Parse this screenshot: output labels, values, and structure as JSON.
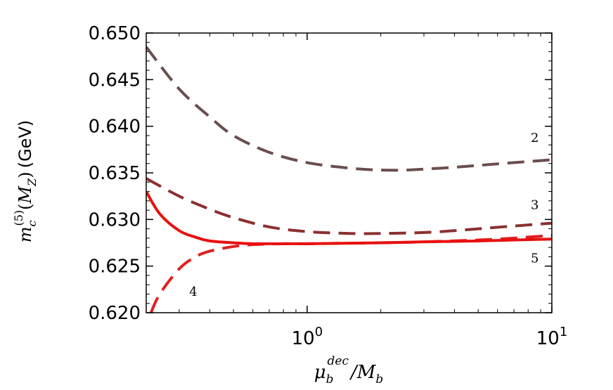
{
  "chart_data": {
    "type": "line",
    "title": "",
    "xlabel": "μ_b^dec / M_b",
    "ylabel": "m_c^(5)(M_Z) (GeV)",
    "ylabel_math": "m_c^{(5)}(M_Z)",
    "ylabel_unit": "(GeV)",
    "xscale": "log",
    "xlim": [
      0.22,
      10
    ],
    "ylim": [
      0.62,
      0.65
    ],
    "x_ticks": [
      {
        "value": 1,
        "base": "10",
        "exp": "0"
      },
      {
        "value": 10,
        "base": "10",
        "exp": "1"
      }
    ],
    "y_ticks": [
      {
        "value": 0.62,
        "label": "0.620"
      },
      {
        "value": 0.625,
        "label": "0.625"
      },
      {
        "value": 0.63,
        "label": "0.630"
      },
      {
        "value": 0.635,
        "label": "0.635"
      },
      {
        "value": 0.64,
        "label": "0.640"
      },
      {
        "value": 0.645,
        "label": "0.645"
      },
      {
        "value": 0.65,
        "label": "0.650"
      }
    ],
    "grid": false,
    "series": [
      {
        "name": "2",
        "label": "2",
        "style": "dashed",
        "color": "#6b4e4e",
        "x": [
          0.22,
          0.3,
          0.4,
          0.5,
          0.7,
          1.0,
          1.5,
          2.0,
          2.5,
          3.0,
          4.0,
          5.0,
          7.0,
          10.0
        ],
        "y": [
          0.6485,
          0.644,
          0.641,
          0.639,
          0.6372,
          0.6361,
          0.6355,
          0.6353,
          0.6353,
          0.6354,
          0.6356,
          0.6358,
          0.6361,
          0.6364
        ]
      },
      {
        "name": "3",
        "label": "3",
        "style": "dashed",
        "color": "#8b3030",
        "x": [
          0.22,
          0.3,
          0.4,
          0.5,
          0.7,
          1.0,
          1.5,
          2.0,
          3.0,
          4.0,
          5.0,
          7.0,
          10.0
        ],
        "y": [
          0.6344,
          0.6325,
          0.6311,
          0.6302,
          0.6292,
          0.6287,
          0.6285,
          0.6285,
          0.6286,
          0.6288,
          0.629,
          0.6293,
          0.6296
        ]
      },
      {
        "name": "4",
        "label": "4",
        "style": "dashed",
        "color": "#e02020",
        "x": [
          0.23,
          0.25,
          0.3,
          0.35,
          0.4,
          0.5,
          0.6,
          0.8,
          1.0,
          2.0,
          3.0,
          5.0,
          7.0,
          10.0
        ],
        "y": [
          0.62,
          0.622,
          0.6247,
          0.626,
          0.6266,
          0.6271,
          0.6273,
          0.6274,
          0.6274,
          0.6275,
          0.6276,
          0.6278,
          0.628,
          0.6283
        ]
      },
      {
        "name": "5",
        "label": "5",
        "style": "solid",
        "color": "#e81010",
        "x": [
          0.22,
          0.25,
          0.3,
          0.35,
          0.4,
          0.5,
          0.6,
          0.8,
          1.0,
          2.0,
          3.0,
          5.0,
          7.0,
          10.0
        ],
        "y": [
          0.633,
          0.6306,
          0.6288,
          0.6281,
          0.6277,
          0.6275,
          0.6274,
          0.6274,
          0.6274,
          0.6275,
          0.6276,
          0.6277,
          0.6278,
          0.6279
        ]
      }
    ],
    "annotations": [
      {
        "text": "2",
        "x": 8.2,
        "y": 0.6383
      },
      {
        "text": "3",
        "x": 8.2,
        "y": 0.6311
      },
      {
        "text": "5",
        "x": 8.2,
        "y": 0.6254
      },
      {
        "text": "4",
        "x": 0.33,
        "y": 0.6218
      }
    ]
  }
}
